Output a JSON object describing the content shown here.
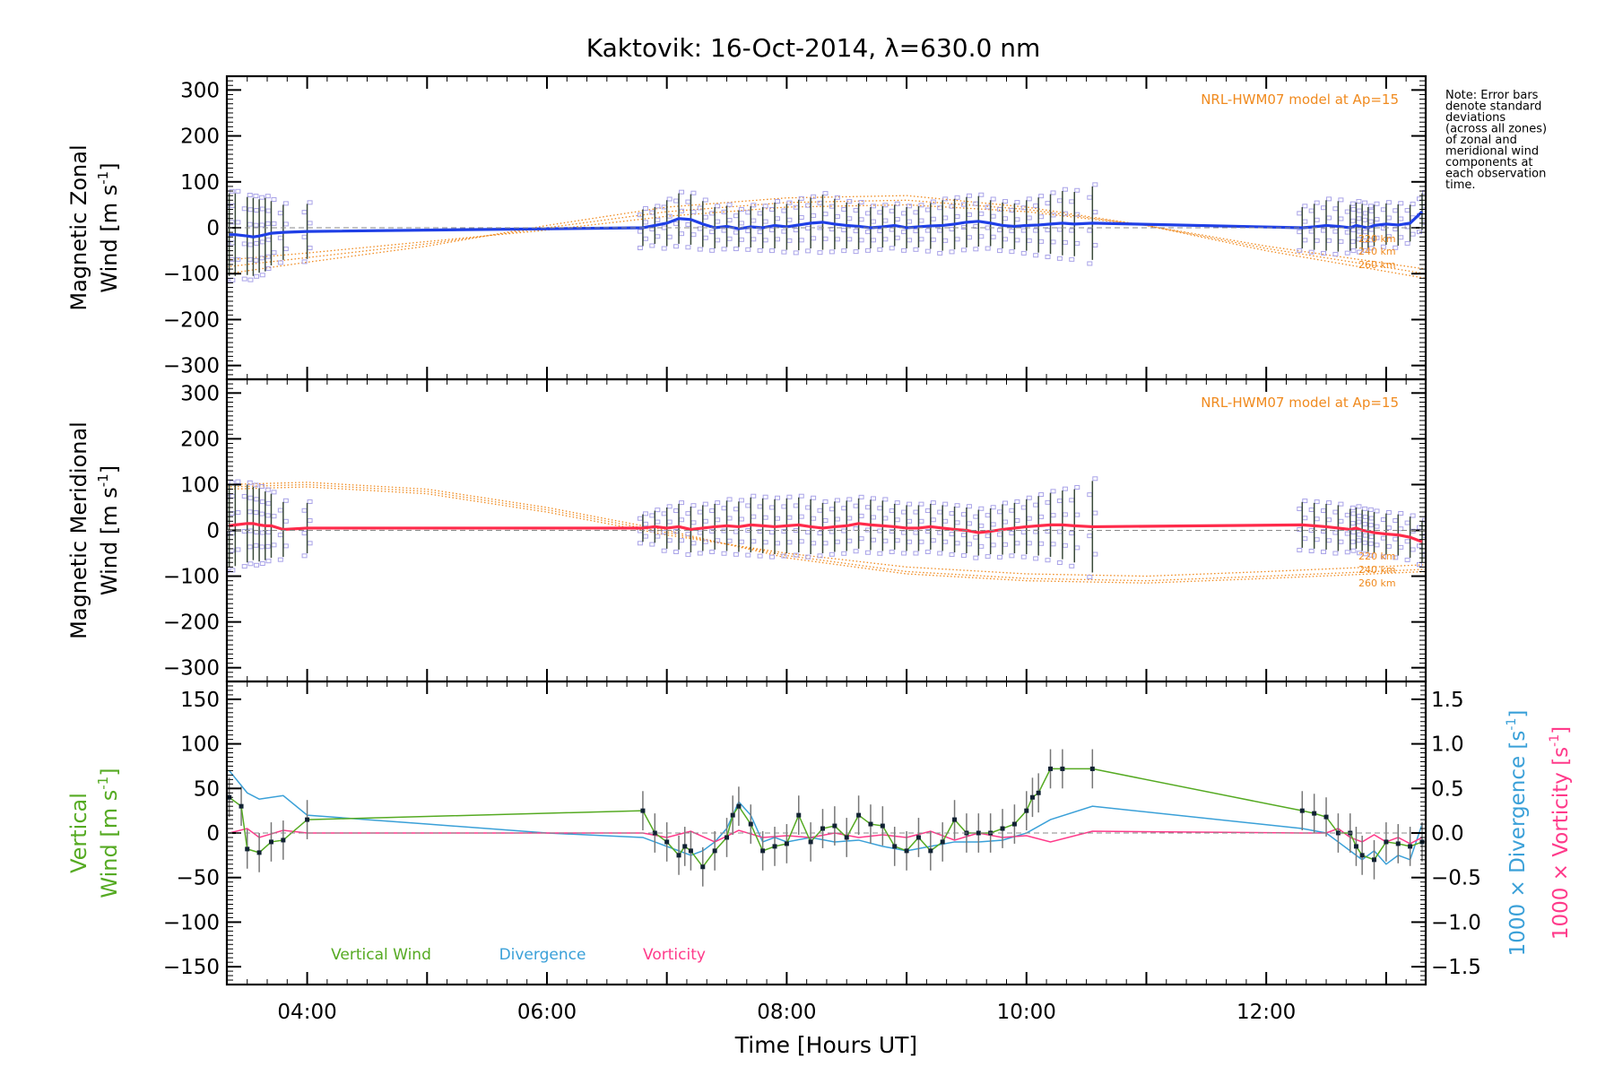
{
  "title": "Kaktovik: 16-Oct-2014, λ=630.0 nm",
  "note": [
    "Note: Error bars",
    "denote standard",
    "deviations",
    "(across all zones)",
    "of zonal and",
    "meridional wind",
    "components at",
    "each observation",
    "time."
  ],
  "colors": {
    "zonal": "#1f3fe6",
    "meridional": "#ff2a4a",
    "model": "#f08a1e",
    "errbar": "#3a4a3a",
    "zone_point": "#a9a3e8",
    "vertical": "#55aa22",
    "divergence": "#3aa0d8",
    "vorticity": "#ff3a8a"
  },
  "chart_data": [
    {
      "type": "line",
      "panel": "zonal",
      "ylabel": [
        "Magnetic Zonal",
        "Wind"
      ],
      "yunit": "m s",
      "yunit_sup": "-1",
      "ylim": [
        -330,
        330
      ],
      "yticks": [
        300,
        200,
        100,
        0,
        -100,
        -200,
        -300
      ],
      "xlim": [
        3.33,
        13.33
      ],
      "model_label": "NRL-HWM07 model at Ap=15",
      "model_altitudes": [
        "220 km",
        "240 km",
        "260 km"
      ],
      "model_curves": [
        {
          "name": "220 km",
          "x": [
            3.33,
            4.0,
            5.0,
            6.0,
            7.0,
            8.0,
            9.0,
            10.0,
            11.0,
            12.0,
            13.33
          ],
          "y": [
            -70,
            -55,
            -30,
            -5,
            25,
            45,
            50,
            35,
            5,
            -40,
            -90
          ]
        },
        {
          "name": "240 km",
          "x": [
            3.33,
            4.0,
            5.0,
            6.0,
            7.0,
            8.0,
            9.0,
            10.0,
            11.0,
            12.0,
            13.33
          ],
          "y": [
            -85,
            -65,
            -35,
            0,
            35,
            55,
            60,
            40,
            5,
            -45,
            -100
          ]
        },
        {
          "name": "260 km",
          "x": [
            3.33,
            4.0,
            5.0,
            6.0,
            7.0,
            8.0,
            9.0,
            10.0,
            11.0,
            12.0,
            13.33
          ],
          "y": [
            -100,
            -75,
            -40,
            5,
            45,
            65,
            70,
            45,
            5,
            -50,
            -110
          ]
        }
      ],
      "series": [
        {
          "x": [
            3.35,
            3.4,
            3.5,
            3.55,
            3.6,
            3.65,
            3.7,
            3.8,
            4.0,
            6.8,
            6.9,
            7.0,
            7.1,
            7.2,
            7.3,
            7.4,
            7.5,
            7.6,
            7.7,
            7.8,
            7.9,
            8.0,
            8.1,
            8.2,
            8.3,
            8.4,
            8.5,
            8.6,
            8.7,
            8.8,
            8.9,
            9.0,
            9.1,
            9.2,
            9.3,
            9.4,
            9.5,
            9.6,
            9.7,
            9.8,
            9.9,
            10.0,
            10.1,
            10.2,
            10.3,
            10.4,
            10.55,
            12.3,
            12.4,
            12.5,
            12.6,
            12.7,
            12.75,
            12.8,
            12.85,
            12.9,
            13.0,
            13.1,
            13.2,
            13.3
          ],
          "y": [
            -15,
            -15,
            -18,
            -20,
            -18,
            -15,
            -12,
            -10,
            -8,
            0,
            5,
            10,
            20,
            18,
            8,
            0,
            3,
            -2,
            2,
            0,
            5,
            2,
            6,
            10,
            12,
            8,
            5,
            3,
            0,
            2,
            5,
            0,
            2,
            4,
            5,
            8,
            12,
            14,
            10,
            5,
            3,
            5,
            6,
            8,
            10,
            8,
            10,
            0,
            2,
            5,
            3,
            0,
            5,
            2,
            0,
            5,
            8,
            6,
            10,
            35
          ],
          "err": [
            90,
            90,
            85,
            85,
            80,
            80,
            70,
            60,
            60,
            40,
            40,
            50,
            55,
            55,
            50,
            45,
            45,
            40,
            45,
            45,
            50,
            50,
            55,
            55,
            60,
            55,
            50,
            50,
            45,
            45,
            45,
            45,
            45,
            50,
            55,
            55,
            55,
            55,
            50,
            50,
            50,
            55,
            60,
            65,
            70,
            70,
            80,
            45,
            50,
            55,
            55,
            50,
            50,
            50,
            45,
            45,
            45,
            45,
            40,
            40
          ]
        }
      ]
    },
    {
      "type": "line",
      "panel": "meridional",
      "ylabel": [
        "Magnetic Meridional",
        "Wind"
      ],
      "yunit": "m s",
      "yunit_sup": "-1",
      "ylim": [
        -330,
        330
      ],
      "yticks": [
        300,
        200,
        100,
        0,
        -100,
        -200,
        -300
      ],
      "xlim": [
        3.33,
        13.33
      ],
      "model_label": "NRL-HWM07 model at Ap=15",
      "model_altitudes": [
        "220 km",
        "240 km",
        "260 km"
      ],
      "model_curves": [
        {
          "name": "220 km",
          "x": [
            3.33,
            4.0,
            5.0,
            6.0,
            7.0,
            8.0,
            9.0,
            10.0,
            11.0,
            12.0,
            13.33
          ],
          "y": [
            90,
            95,
            80,
            40,
            -10,
            -50,
            -80,
            -95,
            -100,
            -90,
            -75
          ]
        },
        {
          "name": "240 km",
          "x": [
            3.33,
            4.0,
            5.0,
            6.0,
            7.0,
            8.0,
            9.0,
            10.0,
            11.0,
            12.0,
            13.33
          ],
          "y": [
            95,
            100,
            85,
            45,
            -5,
            -55,
            -90,
            -105,
            -110,
            -100,
            -85
          ]
        },
        {
          "name": "260 km",
          "x": [
            3.33,
            4.0,
            5.0,
            6.0,
            7.0,
            8.0,
            9.0,
            10.0,
            11.0,
            12.0,
            13.33
          ],
          "y": [
            100,
            105,
            90,
            50,
            0,
            -60,
            -95,
            -110,
            -115,
            -105,
            -90
          ]
        }
      ],
      "series": [
        {
          "x": [
            3.35,
            3.4,
            3.5,
            3.55,
            3.6,
            3.65,
            3.7,
            3.8,
            4.0,
            6.8,
            6.9,
            7.0,
            7.1,
            7.2,
            7.3,
            7.4,
            7.5,
            7.6,
            7.7,
            7.8,
            7.9,
            8.0,
            8.1,
            8.2,
            8.3,
            8.4,
            8.5,
            8.6,
            8.7,
            8.8,
            8.9,
            9.0,
            9.1,
            9.2,
            9.3,
            9.4,
            9.5,
            9.6,
            9.7,
            9.8,
            9.9,
            10.0,
            10.1,
            10.2,
            10.3,
            10.4,
            10.55,
            12.3,
            12.4,
            12.5,
            12.6,
            12.7,
            12.75,
            12.8,
            12.85,
            12.9,
            13.0,
            13.1,
            13.2,
            13.3
          ],
          "y": [
            10,
            12,
            15,
            15,
            12,
            10,
            10,
            2,
            5,
            5,
            8,
            5,
            8,
            2,
            5,
            8,
            10,
            8,
            12,
            10,
            8,
            10,
            12,
            8,
            5,
            8,
            10,
            15,
            12,
            10,
            8,
            5,
            5,
            8,
            5,
            2,
            0,
            -5,
            -2,
            2,
            5,
            8,
            10,
            12,
            12,
            10,
            8,
            12,
            10,
            8,
            5,
            2,
            5,
            0,
            -2,
            -5,
            -8,
            -10,
            -15,
            -25
          ],
          "err": [
            90,
            90,
            85,
            80,
            80,
            75,
            70,
            60,
            55,
            30,
            35,
            45,
            50,
            50,
            50,
            50,
            55,
            55,
            60,
            60,
            60,
            60,
            60,
            60,
            55,
            55,
            55,
            55,
            55,
            55,
            50,
            50,
            50,
            50,
            50,
            50,
            50,
            50,
            50,
            55,
            55,
            60,
            65,
            70,
            75,
            80,
            100,
            50,
            50,
            50,
            50,
            45,
            45,
            45,
            45,
            45,
            45,
            45,
            45,
            45
          ]
        }
      ]
    },
    {
      "type": "line",
      "panel": "vertical",
      "ylabel": [
        "Vertical",
        "Wind"
      ],
      "yunit": "m s",
      "yunit_sup": "-1",
      "ylim": [
        -170,
        170
      ],
      "yticks": [
        150,
        100,
        50,
        0,
        -50,
        -100,
        -150
      ],
      "y2lim": [
        -1.7,
        1.7
      ],
      "y2ticks": [
        1.5,
        1.0,
        0.5,
        0.0,
        -0.5,
        -1.0,
        -1.5
      ],
      "y2labels": [
        "1.5",
        "1.0",
        "0.5",
        "0.0",
        "−0.5",
        "−1.0",
        "−1.5"
      ],
      "y2label_divergence": "1000 × Divergence",
      "y2label_vorticity": "1000 × Vorticity",
      "y2unit": "s",
      "y2unit_sup": "-1",
      "xlim": [
        3.33,
        13.33
      ],
      "xticks": [
        4,
        6,
        8,
        10,
        12
      ],
      "xticklabels": [
        "04:00",
        "06:00",
        "08:00",
        "10:00",
        "12:00"
      ],
      "xlabel": "Time [Hours UT]",
      "legend": [
        "Vertical Wind",
        "Divergence",
        "Vorticity"
      ],
      "series": [
        {
          "name": "Vertical Wind",
          "x": [
            3.35,
            3.45,
            3.5,
            3.6,
            3.7,
            3.8,
            4.0,
            6.8,
            6.9,
            7.0,
            7.1,
            7.15,
            7.2,
            7.3,
            7.4,
            7.5,
            7.55,
            7.6,
            7.7,
            7.8,
            7.9,
            8.0,
            8.1,
            8.2,
            8.3,
            8.4,
            8.5,
            8.6,
            8.7,
            8.8,
            8.9,
            9.0,
            9.1,
            9.2,
            9.3,
            9.4,
            9.5,
            9.6,
            9.7,
            9.8,
            9.9,
            10.0,
            10.05,
            10.1,
            10.2,
            10.3,
            10.55,
            12.3,
            12.4,
            12.5,
            12.6,
            12.7,
            12.75,
            12.8,
            12.9,
            13.0,
            13.1,
            13.2,
            13.3
          ],
          "y": [
            40,
            30,
            -18,
            -22,
            -10,
            -8,
            15,
            25,
            0,
            -10,
            -25,
            -15,
            -20,
            -38,
            -20,
            -5,
            20,
            30,
            10,
            -20,
            -15,
            -12,
            20,
            -10,
            5,
            8,
            -5,
            20,
            10,
            8,
            -15,
            -20,
            -5,
            -20,
            -10,
            15,
            0,
            0,
            0,
            5,
            10,
            25,
            40,
            45,
            72,
            72,
            72,
            25,
            22,
            18,
            0,
            0,
            -15,
            -25,
            -30,
            -10,
            -12,
            -15,
            -10
          ],
          "err": [
            22,
            22,
            22,
            22,
            22,
            22,
            22,
            22,
            22,
            22,
            22,
            22,
            22,
            22,
            22,
            22,
            22,
            22,
            22,
            22,
            22,
            22,
            22,
            22,
            22,
            22,
            22,
            22,
            22,
            22,
            22,
            22,
            22,
            22,
            22,
            22,
            22,
            22,
            22,
            22,
            22,
            22,
            22,
            22,
            22,
            22,
            22,
            22,
            22,
            22,
            22,
            22,
            22,
            22,
            22,
            22,
            22,
            22,
            22
          ]
        },
        {
          "name": "Divergence",
          "x": [
            3.35,
            3.5,
            3.6,
            3.8,
            4.0,
            4.5,
            5.0,
            6.0,
            6.8,
            6.9,
            7.0,
            7.1,
            7.2,
            7.3,
            7.4,
            7.5,
            7.6,
            7.7,
            7.8,
            7.9,
            8.0,
            8.2,
            8.4,
            8.6,
            8.8,
            9.0,
            9.2,
            9.4,
            9.6,
            9.8,
            10.0,
            10.2,
            10.55,
            12.3,
            12.5,
            12.6,
            12.7,
            12.75,
            12.8,
            12.9,
            13.0,
            13.1,
            13.2,
            13.3
          ],
          "y": [
            0.7,
            0.45,
            0.38,
            0.42,
            0.2,
            0.15,
            0.1,
            0.0,
            -0.05,
            -0.1,
            -0.15,
            -0.2,
            -0.25,
            -0.2,
            -0.1,
            0.05,
            0.35,
            0.2,
            -0.1,
            -0.05,
            -0.1,
            -0.05,
            -0.1,
            -0.08,
            -0.15,
            -0.2,
            -0.15,
            -0.1,
            -0.1,
            -0.08,
            0.0,
            0.15,
            0.3,
            0.05,
            0.0,
            -0.1,
            -0.2,
            -0.25,
            -0.3,
            -0.2,
            -0.35,
            -0.25,
            -0.3,
            0.1
          ]
        },
        {
          "name": "Vorticity",
          "x": [
            3.35,
            3.5,
            3.6,
            3.8,
            4.0,
            6.8,
            7.0,
            7.2,
            7.4,
            7.6,
            7.8,
            8.0,
            8.2,
            8.4,
            8.6,
            8.8,
            9.0,
            9.2,
            9.4,
            9.6,
            9.8,
            10.0,
            10.2,
            10.55,
            12.3,
            12.5,
            12.6,
            12.7,
            12.8,
            12.9,
            13.0,
            13.1,
            13.2,
            13.3
          ],
          "y": [
            0.0,
            0.05,
            -0.05,
            0.03,
            0.0,
            0.0,
            -0.05,
            0.02,
            -0.1,
            0.03,
            -0.05,
            -0.03,
            -0.05,
            0.0,
            -0.05,
            -0.02,
            -0.05,
            0.02,
            -0.08,
            0.0,
            -0.05,
            -0.03,
            -0.1,
            0.02,
            0.0,
            0.0,
            0.05,
            -0.05,
            -0.1,
            -0.02,
            -0.1,
            -0.05,
            -0.12,
            -0.05
          ]
        }
      ]
    }
  ]
}
